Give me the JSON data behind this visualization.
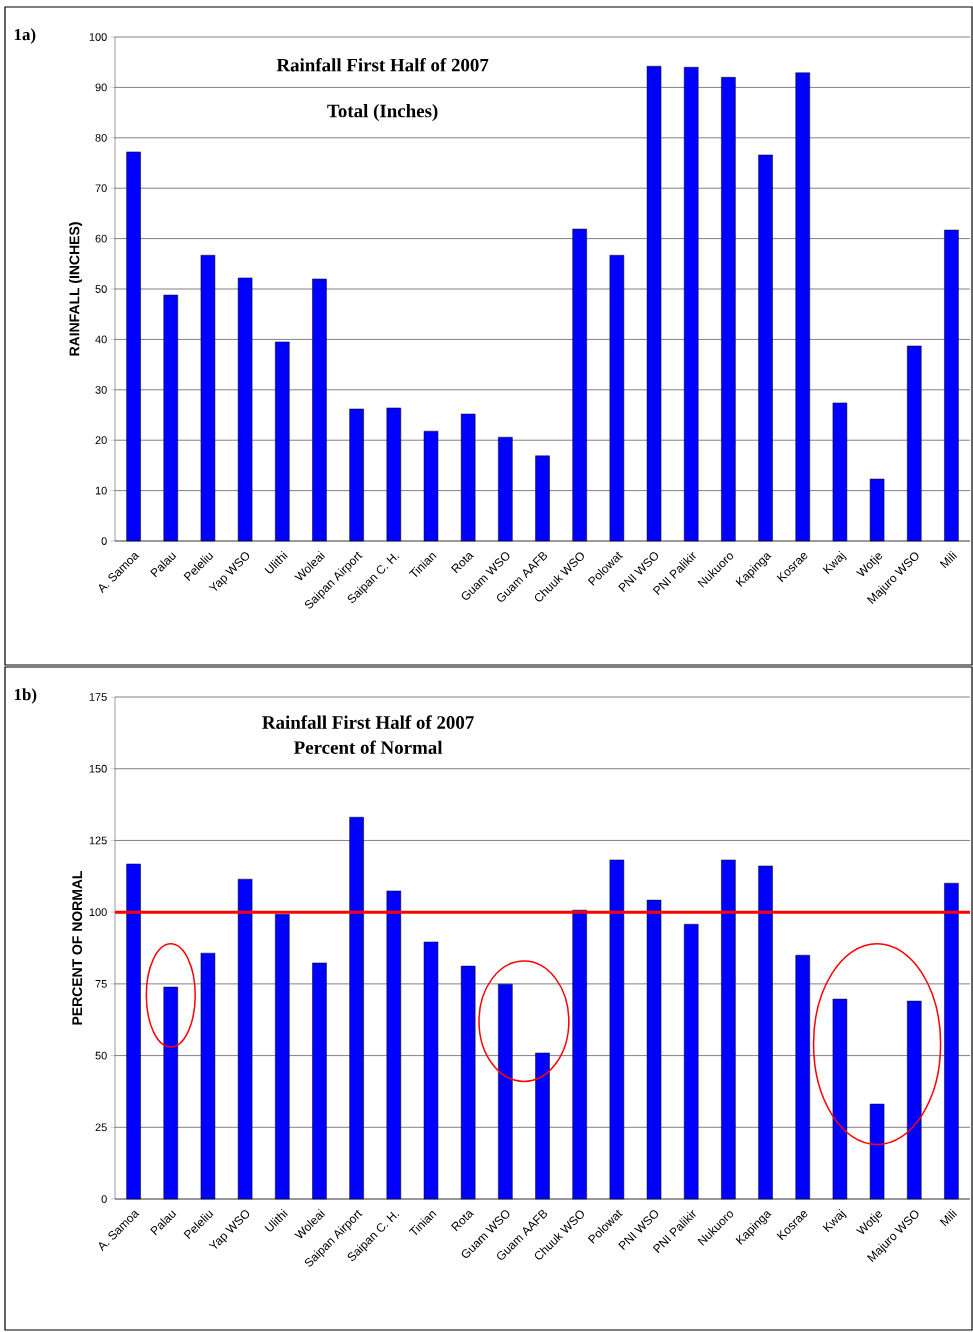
{
  "chart_data": [
    {
      "type": "bar",
      "title": "Rainfall First Half of 2007",
      "subtitle": "Total (Inches)",
      "ylabel": "RAINFALL (INCHES)",
      "categories": [
        "A. Samoa",
        "Palau",
        "Peleliu",
        "Yap WSO",
        "Ulithi",
        "Woleai",
        "Saipan Airport",
        "Saipan C. H.",
        "Tinian",
        "Rota",
        "Guam WSO",
        "Guam AAFB",
        "Chuuk WSO",
        "Polowat",
        "PNI WSO",
        "PNI Palikir",
        "Nukuoro",
        "Kapinga",
        "Kosrae",
        "Kwaj",
        "Wotje",
        "Majuro WSO",
        "Mili"
      ],
      "values": [
        77.2,
        48.8,
        56.7,
        52.2,
        39.5,
        52.0,
        26.2,
        26.4,
        21.8,
        25.2,
        20.6,
        16.9,
        61.9,
        56.7,
        94.2,
        94.0,
        92.0,
        76.6,
        92.9,
        27.4,
        12.3,
        38.7,
        61.7
      ],
      "color": "#0000ff",
      "ylim": [
        0,
        100
      ],
      "yticks": [
        0,
        10,
        20,
        30,
        40,
        50,
        60,
        70,
        80,
        90,
        100
      ],
      "grid": "y",
      "annotations": [
        "1a)"
      ]
    },
    {
      "type": "bar",
      "title": "Rainfall First Half of 2007",
      "subtitle": "Percent of Normal",
      "ylabel": "PERCENT OF NORMAL",
      "categories": [
        "A. Samoa",
        "Palau",
        "Peleliu",
        "Yap WSO",
        "Ulithi",
        "Woleai",
        "Saipan Airport",
        "Saipan C. H.",
        "Tinian",
        "Rota",
        "Guam WSO",
        "Guam AAFB",
        "Chuuk WSO",
        "Polowat",
        "PNI WSO",
        "PNI Palikir",
        "Nukuoro",
        "Kapinga",
        "Kosrae",
        "Kwaj",
        "Wotje",
        "Majuro WSO",
        "Mili"
      ],
      "values": [
        116.8,
        73.9,
        85.7,
        111.5,
        99.3,
        82.3,
        133.1,
        107.4,
        89.6,
        81.2,
        74.9,
        50.9,
        100.7,
        118.2,
        104.2,
        95.8,
        118.2,
        116.1,
        85.0,
        69.7,
        33.1,
        69.0,
        110.1
      ],
      "color": "#0000ff",
      "ylim": [
        0,
        175
      ],
      "yticks": [
        0,
        25,
        50,
        75,
        100,
        125,
        150,
        175
      ],
      "grid": "y",
      "ref_lines": [
        {
          "axis": "y",
          "value": 100,
          "color": "#ff0000"
        }
      ],
      "annotations": [
        "1b)"
      ]
    }
  ]
}
